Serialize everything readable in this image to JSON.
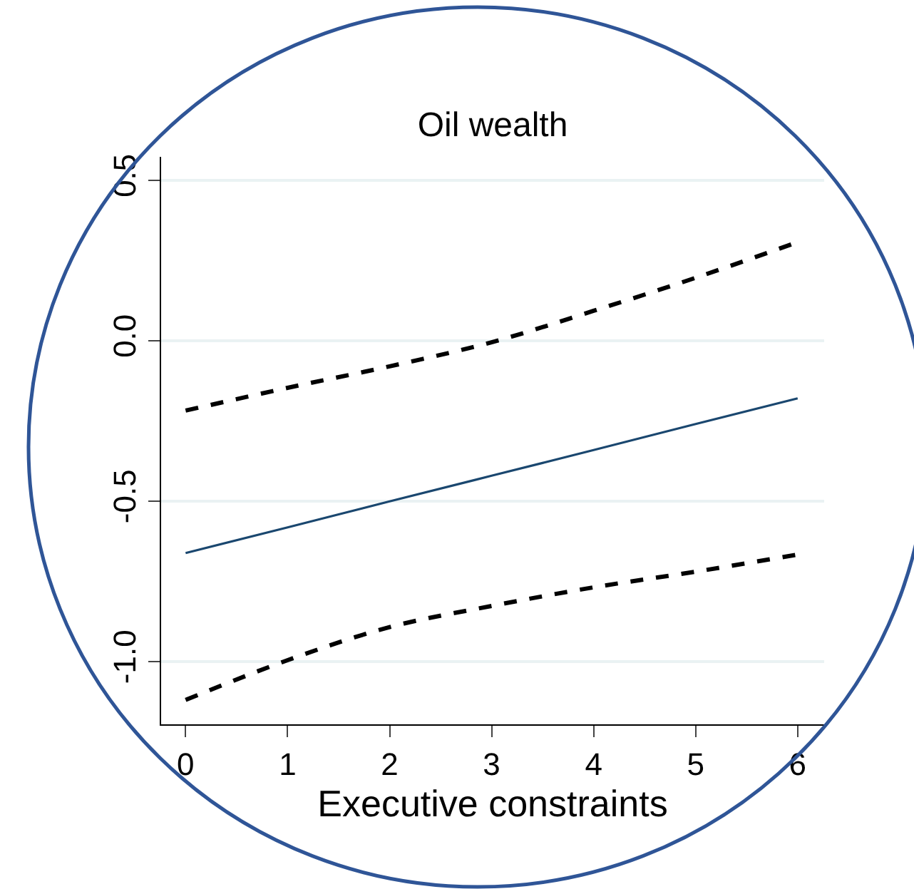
{
  "chart_data": {
    "type": "line",
    "title": "Oil wealth",
    "xlabel": "Executive constraints",
    "x": [
      0,
      1,
      2,
      3,
      4,
      5,
      6
    ],
    "series": [
      {
        "color": "#000000",
        "line_style": "dashed",
        "values": [
          -0.218,
          -0.147,
          -0.08,
          -0.005,
          0.093,
          0.196,
          0.307
        ]
      },
      {
        "color": "#1a476f",
        "line_style": "solid",
        "values": [
          -0.662,
          -0.582,
          -0.501,
          -0.421,
          -0.341,
          -0.26,
          -0.18
        ]
      },
      {
        "color": "#000000",
        "line_style": "dashed",
        "values": [
          -1.12,
          -0.996,
          -0.893,
          -0.827,
          -0.769,
          -0.72,
          -0.667
        ]
      }
    ],
    "xlim": [
      -0.24,
      6.26
    ],
    "xticks": [
      0,
      1,
      2,
      3,
      4,
      5,
      6
    ],
    "ylim": [
      -1.196,
      0.573
    ],
    "yticks": [
      {
        "value": -1,
        "label": "-1.0"
      },
      {
        "value": -0.5,
        "label": "-0.5"
      },
      {
        "value": 0,
        "label": "0.0"
      },
      {
        "value": 0.5,
        "label": "0.5"
      }
    ],
    "grid": "y",
    "marker": "none"
  }
}
